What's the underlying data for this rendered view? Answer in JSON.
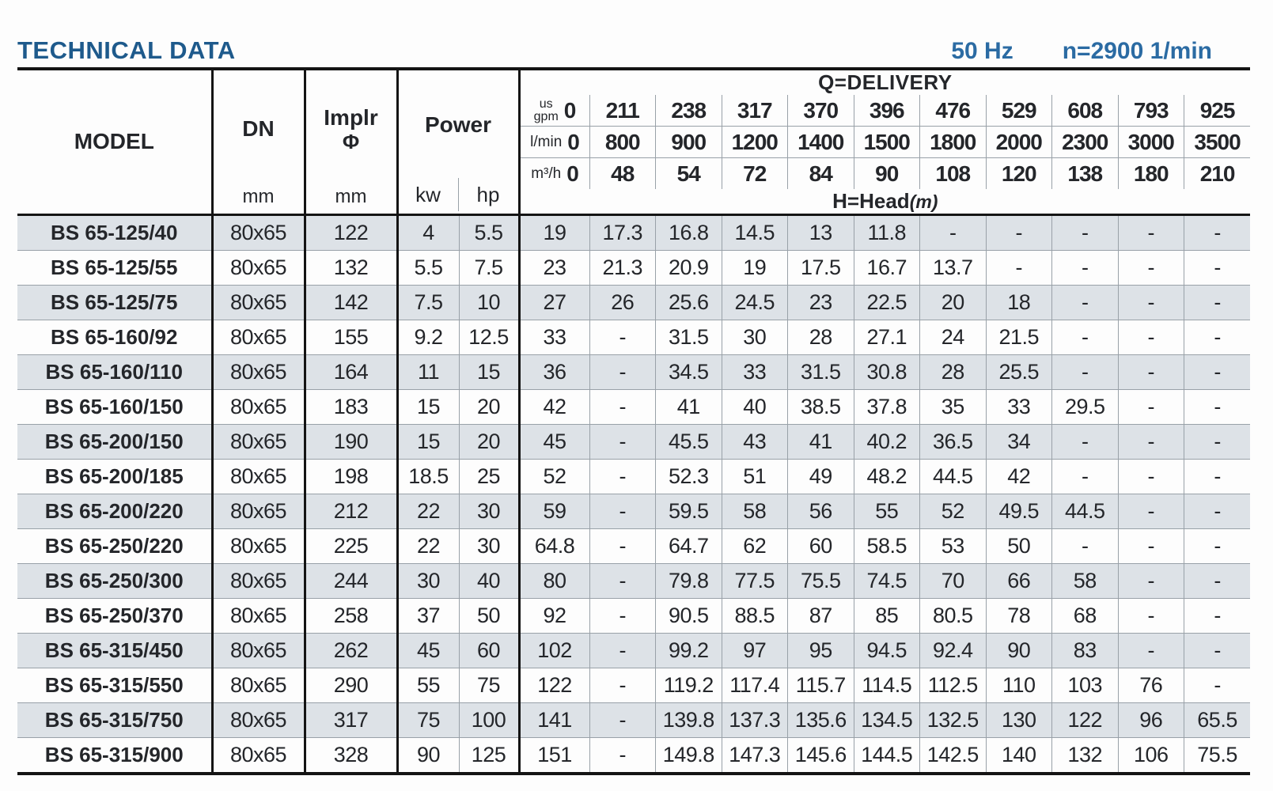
{
  "page": {
    "title": "TECHNICAL DATA",
    "frequency": "50 Hz",
    "speed": "n=2900 1/min"
  },
  "table": {
    "header": {
      "model_label": "MODEL",
      "dn_label": "DN",
      "dn_unit": "mm",
      "impeller_label": "Implr",
      "impeller_symbol": "Φ",
      "impeller_unit": "mm",
      "power_label": "Power",
      "power_unit_kw": "kw",
      "power_unit_hp": "hp",
      "delivery_label": "Q=DELIVERY",
      "head_label": "H=Head",
      "head_unit": "(m)",
      "flow_rows": [
        {
          "unit_lines": [
            "us",
            "gpm"
          ],
          "values": [
            "0",
            "211",
            "238",
            "317",
            "370",
            "396",
            "476",
            "529",
            "608",
            "793",
            "925"
          ]
        },
        {
          "unit_lines": [
            "l/min"
          ],
          "values": [
            "0",
            "800",
            "900",
            "1200",
            "1400",
            "1500",
            "1800",
            "2000",
            "2300",
            "3000",
            "3500"
          ]
        },
        {
          "unit_lines": [
            "m³/h"
          ],
          "values": [
            "0",
            "48",
            "54",
            "72",
            "84",
            "90",
            "108",
            "120",
            "138",
            "180",
            "210"
          ]
        }
      ]
    },
    "rows": [
      {
        "model": "BS 65-125/40",
        "dn": "80x65",
        "impeller": "122",
        "kw": "4",
        "hp": "5.5",
        "head": [
          "19",
          "17.3",
          "16.8",
          "14.5",
          "13",
          "11.8",
          "-",
          "-",
          "-",
          "-",
          "-"
        ]
      },
      {
        "model": "BS 65-125/55",
        "dn": "80x65",
        "impeller": "132",
        "kw": "5.5",
        "hp": "7.5",
        "head": [
          "23",
          "21.3",
          "20.9",
          "19",
          "17.5",
          "16.7",
          "13.7",
          "-",
          "-",
          "-",
          "-"
        ]
      },
      {
        "model": "BS 65-125/75",
        "dn": "80x65",
        "impeller": "142",
        "kw": "7.5",
        "hp": "10",
        "head": [
          "27",
          "26",
          "25.6",
          "24.5",
          "23",
          "22.5",
          "20",
          "18",
          "-",
          "-",
          "-"
        ]
      },
      {
        "model": "BS 65-160/92",
        "dn": "80x65",
        "impeller": "155",
        "kw": "9.2",
        "hp": "12.5",
        "head": [
          "33",
          "-",
          "31.5",
          "30",
          "28",
          "27.1",
          "24",
          "21.5",
          "-",
          "-",
          "-"
        ]
      },
      {
        "model": "BS 65-160/110",
        "dn": "80x65",
        "impeller": "164",
        "kw": "11",
        "hp": "15",
        "head": [
          "36",
          "-",
          "34.5",
          "33",
          "31.5",
          "30.8",
          "28",
          "25.5",
          "-",
          "-",
          "-"
        ]
      },
      {
        "model": "BS 65-160/150",
        "dn": "80x65",
        "impeller": "183",
        "kw": "15",
        "hp": "20",
        "head": [
          "42",
          "-",
          "41",
          "40",
          "38.5",
          "37.8",
          "35",
          "33",
          "29.5",
          "-",
          "-"
        ]
      },
      {
        "model": "BS 65-200/150",
        "dn": "80x65",
        "impeller": "190",
        "kw": "15",
        "hp": "20",
        "head": [
          "45",
          "-",
          "45.5",
          "43",
          "41",
          "40.2",
          "36.5",
          "34",
          "-",
          "-",
          "-"
        ]
      },
      {
        "model": "BS 65-200/185",
        "dn": "80x65",
        "impeller": "198",
        "kw": "18.5",
        "hp": "25",
        "head": [
          "52",
          "-",
          "52.3",
          "51",
          "49",
          "48.2",
          "44.5",
          "42",
          "-",
          "-",
          "-"
        ]
      },
      {
        "model": "BS 65-200/220",
        "dn": "80x65",
        "impeller": "212",
        "kw": "22",
        "hp": "30",
        "head": [
          "59",
          "-",
          "59.5",
          "58",
          "56",
          "55",
          "52",
          "49.5",
          "44.5",
          "-",
          "-"
        ]
      },
      {
        "model": "BS 65-250/220",
        "dn": "80x65",
        "impeller": "225",
        "kw": "22",
        "hp": "30",
        "head": [
          "64.8",
          "-",
          "64.7",
          "62",
          "60",
          "58.5",
          "53",
          "50",
          "-",
          "-",
          "-"
        ]
      },
      {
        "model": "BS 65-250/300",
        "dn": "80x65",
        "impeller": "244",
        "kw": "30",
        "hp": "40",
        "head": [
          "80",
          "-",
          "79.8",
          "77.5",
          "75.5",
          "74.5",
          "70",
          "66",
          "58",
          "-",
          "-"
        ]
      },
      {
        "model": "BS 65-250/370",
        "dn": "80x65",
        "impeller": "258",
        "kw": "37",
        "hp": "50",
        "head": [
          "92",
          "-",
          "90.5",
          "88.5",
          "87",
          "85",
          "80.5",
          "78",
          "68",
          "-",
          "-"
        ]
      },
      {
        "model": "BS 65-315/450",
        "dn": "80x65",
        "impeller": "262",
        "kw": "45",
        "hp": "60",
        "head": [
          "102",
          "-",
          "99.2",
          "97",
          "95",
          "94.5",
          "92.4",
          "90",
          "83",
          "-",
          "-"
        ]
      },
      {
        "model": "BS 65-315/550",
        "dn": "80x65",
        "impeller": "290",
        "kw": "55",
        "hp": "75",
        "head": [
          "122",
          "-",
          "119.2",
          "117.4",
          "115.7",
          "114.5",
          "112.5",
          "110",
          "103",
          "76",
          "-"
        ]
      },
      {
        "model": "BS 65-315/750",
        "dn": "80x65",
        "impeller": "317",
        "kw": "75",
        "hp": "100",
        "head": [
          "141",
          "-",
          "139.8",
          "137.3",
          "135.6",
          "134.5",
          "132.5",
          "130",
          "122",
          "96",
          "65.5"
        ]
      },
      {
        "model": "BS 65-315/900",
        "dn": "80x65",
        "impeller": "328",
        "kw": "90",
        "hp": "125",
        "head": [
          "151",
          "-",
          "149.8",
          "147.3",
          "145.6",
          "144.5",
          "142.5",
          "140",
          "132",
          "106",
          "75.5"
        ]
      }
    ]
  },
  "colors": {
    "title_blue": "#1e5a8c",
    "specs_blue": "#2b6ba3",
    "row_shade": "#dde2e7",
    "thick_border": "#141414",
    "thin_border": "#99a1a8"
  }
}
